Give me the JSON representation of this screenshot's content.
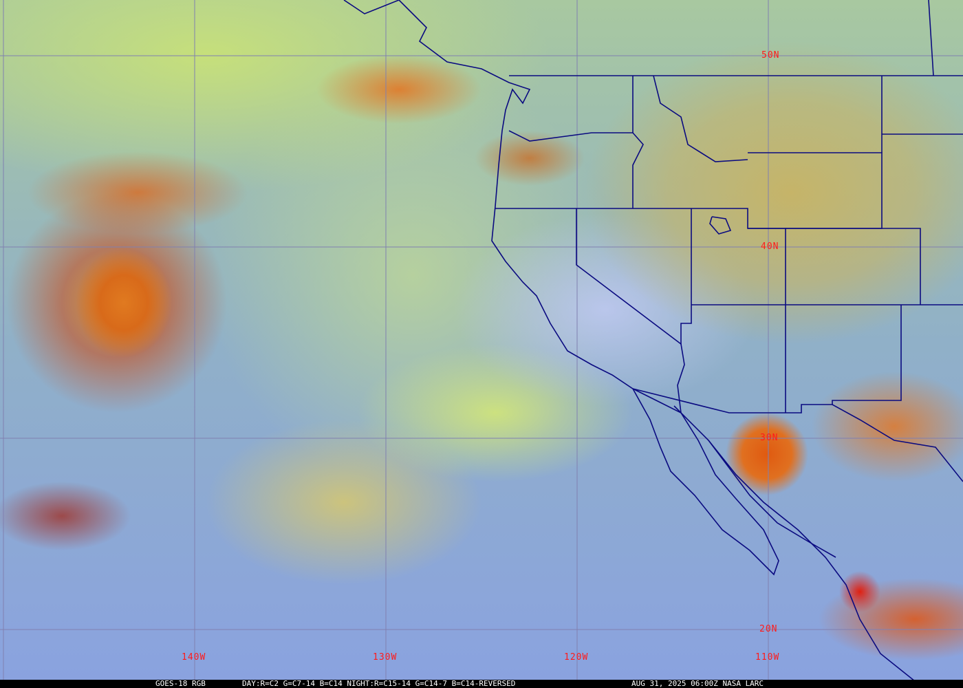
{
  "map": {
    "lat_labels": [
      "50N",
      "40N",
      "30N",
      "20N"
    ],
    "lon_labels": [
      "140W",
      "130W",
      "120W",
      "110W"
    ],
    "colors": {
      "grid": "#8080b0",
      "borders": "#0a0a80",
      "labels": "#ff1a1a",
      "caption_bg": "#000000",
      "caption_text": "#ffffff"
    }
  },
  "caption": {
    "satellite": "GOES-18 RGB",
    "recipe": "DAY:R=C2 G=C7-14 B=C14 NIGHT:R=C15-14 G=C14-7 B=C14-REVERSED",
    "timestamp": "AUG 31, 2025 06:00Z NASA LARC"
  }
}
